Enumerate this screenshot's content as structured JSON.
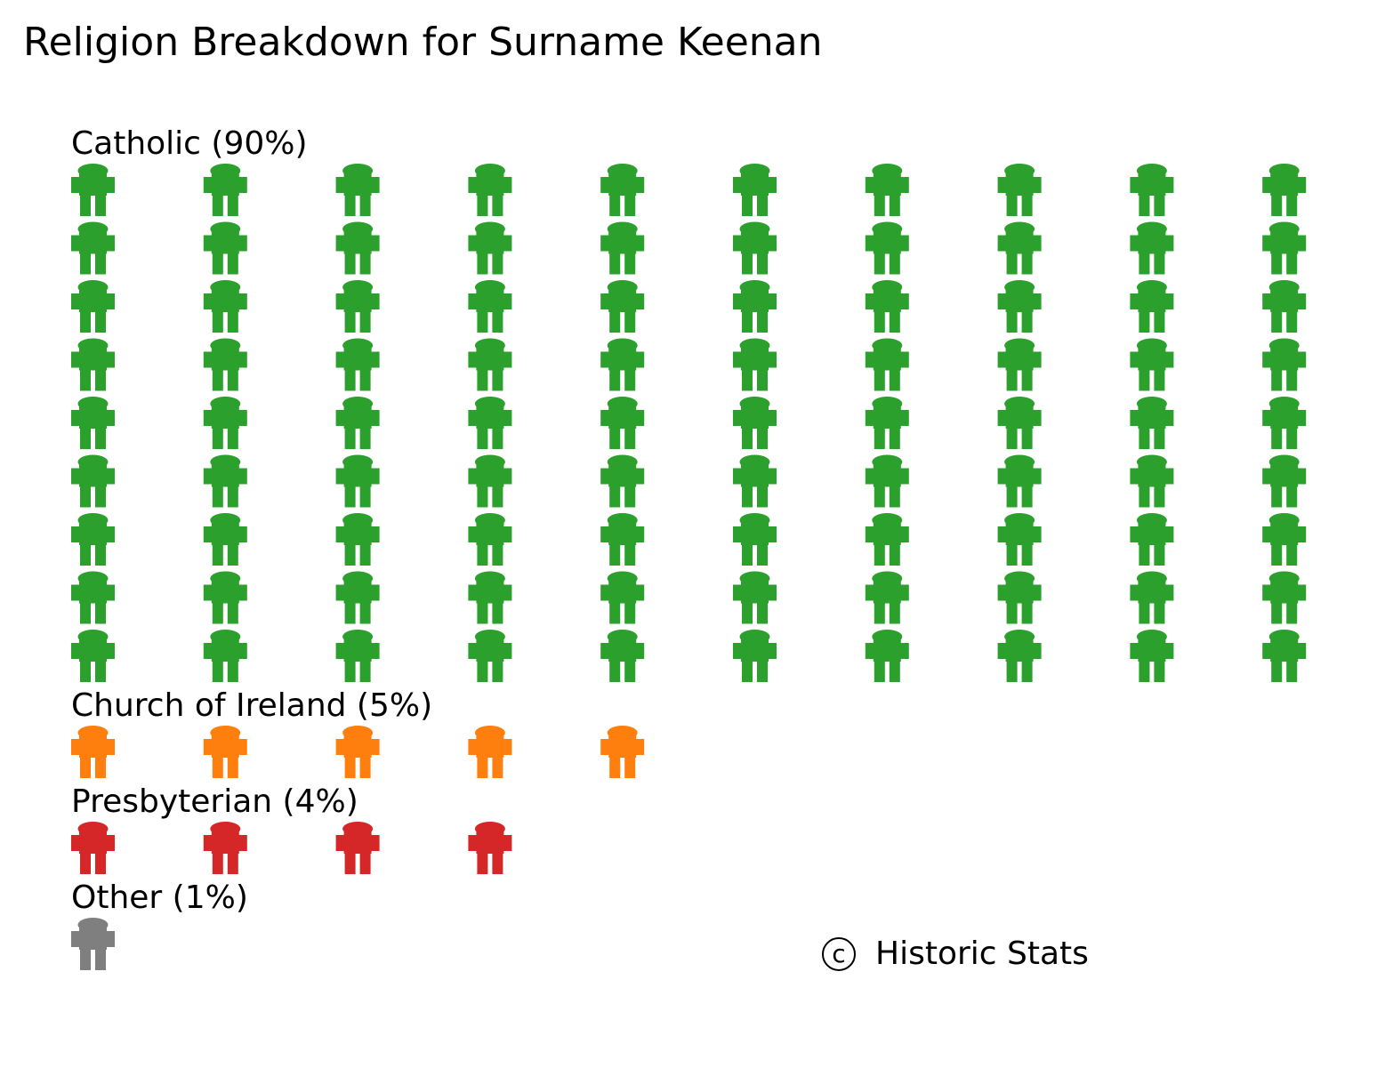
{
  "chart_data": {
    "type": "pictogram",
    "title": "Religion Breakdown for Surname Keenan",
    "unit_per_icon": 1,
    "icons_per_row": 10,
    "icon_shape": "person-icon",
    "groups": [
      {
        "label": "Catholic (90%)",
        "name": "Catholic",
        "percent": 90,
        "count": 90,
        "color": "#2ca02c"
      },
      {
        "label": "Church of Ireland (5%)",
        "name": "Church of Ireland",
        "percent": 5,
        "count": 5,
        "color": "#ff7f0e"
      },
      {
        "label": "Presbyterian (4%)",
        "name": "Presbyterian",
        "percent": 4,
        "count": 4,
        "color": "#d62728"
      },
      {
        "label": "Other (1%)",
        "name": "Other",
        "percent": 1,
        "count": 1,
        "color": "#7f7f7f"
      }
    ],
    "legend": "none",
    "grid": false
  },
  "footer": {
    "copyright_symbol": "c",
    "copyright_text": "Historic Stats"
  }
}
